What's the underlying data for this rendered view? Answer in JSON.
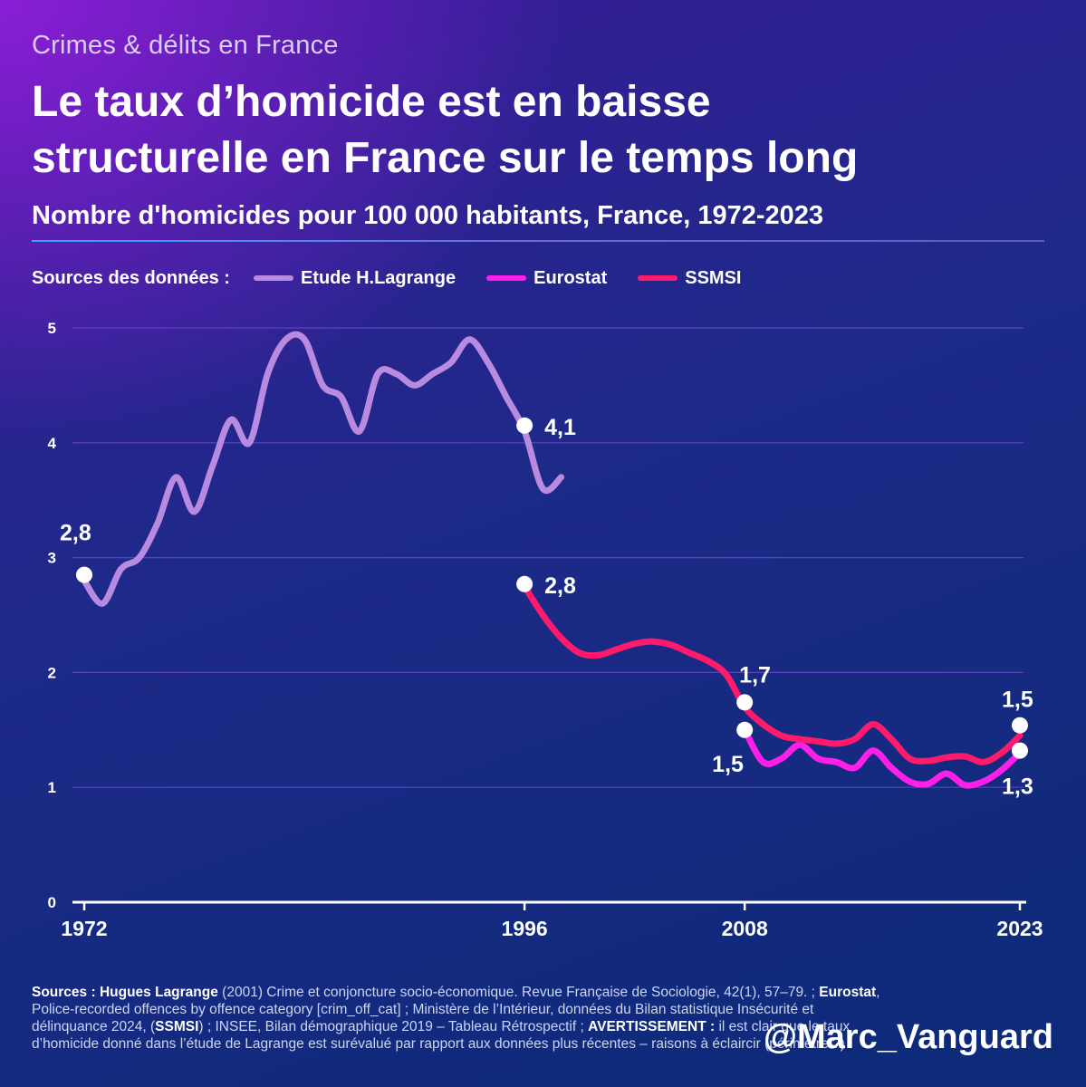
{
  "kicker": "Crimes & délits en France",
  "title_line1": "Le taux d’homicide est en baisse",
  "title_line2": "structurelle en France sur le temps long",
  "subtitle": "Nombre d'homicides pour 100 000 habitants, France, 1972-2023",
  "legend": {
    "lead": "Sources des données :",
    "items": [
      {
        "label": "Etude H.Lagrange",
        "color": "#b98be0"
      },
      {
        "label": "Eurostat",
        "color": "#ff1fe8"
      },
      {
        "label": "SSMSI",
        "color": "#ff1a6c"
      }
    ]
  },
  "chart_data": {
    "type": "line",
    "xlim": [
      1972,
      2023
    ],
    "ylim": [
      0,
      5
    ],
    "yticks": [
      0,
      1,
      2,
      3,
      4,
      5
    ],
    "xticks": [
      1972,
      1996,
      2008,
      2023
    ],
    "xtick_labels": [
      "1972",
      "1996",
      "2008",
      "2023"
    ],
    "ytick_labels": [
      "0",
      "1",
      "2",
      "3",
      "4",
      "5"
    ],
    "grid": "horizontal",
    "legend_position": "top-left",
    "series": [
      {
        "name": "Etude H.Lagrange",
        "color": "#b98be0",
        "x": [
          1972,
          1973,
          1974,
          1975,
          1976,
          1977,
          1978,
          1979,
          1980,
          1981,
          1982,
          1983,
          1984,
          1985,
          1986,
          1987,
          1988,
          1989,
          1990,
          1991,
          1992,
          1993,
          1994,
          1995,
          1996,
          1997,
          1998
        ],
        "y": [
          2.8,
          2.6,
          2.9,
          3.0,
          3.3,
          3.7,
          3.4,
          3.8,
          4.2,
          4.0,
          4.6,
          4.9,
          4.9,
          4.5,
          4.4,
          4.1,
          4.6,
          4.6,
          4.5,
          4.6,
          4.7,
          4.9,
          4.7,
          4.4,
          4.1,
          3.6,
          3.7
        ]
      },
      {
        "name": "SSMSI",
        "color": "#ff1a6c",
        "x": [
          1996,
          1997,
          1998,
          1999,
          2000,
          2001,
          2002,
          2003,
          2004,
          2005,
          2006,
          2007,
          2008,
          2009,
          2010,
          2011,
          2012,
          2013,
          2014,
          2015,
          2016,
          2017,
          2018,
          2019,
          2020,
          2021,
          2022,
          2023
        ],
        "y": [
          2.75,
          2.5,
          2.3,
          2.17,
          2.15,
          2.2,
          2.25,
          2.27,
          2.24,
          2.17,
          2.1,
          1.98,
          1.7,
          1.55,
          1.45,
          1.42,
          1.4,
          1.38,
          1.42,
          1.55,
          1.42,
          1.25,
          1.23,
          1.26,
          1.27,
          1.22,
          1.3,
          1.45
        ]
      },
      {
        "name": "Eurostat",
        "color": "#ff1fe8",
        "x": [
          2008,
          2009,
          2010,
          2011,
          2012,
          2013,
          2014,
          2015,
          2016,
          2017,
          2018,
          2019,
          2020,
          2021,
          2022,
          2023
        ],
        "y": [
          1.5,
          1.22,
          1.25,
          1.37,
          1.25,
          1.22,
          1.17,
          1.32,
          1.17,
          1.05,
          1.03,
          1.12,
          1.02,
          1.05,
          1.15,
          1.3
        ]
      }
    ],
    "annotations": [
      {
        "label": "2,8",
        "x": 1972,
        "y": 2.85,
        "dx": -27,
        "dy": -38,
        "anchor": "start"
      },
      {
        "label": "4,1",
        "x": 1996,
        "y": 4.15,
        "dx": 22,
        "dy": 10,
        "anchor": "start"
      },
      {
        "label": "2,8",
        "x": 1996,
        "y": 2.77,
        "dx": 22,
        "dy": 10,
        "anchor": "start"
      },
      {
        "label": "1,7",
        "x": 2008,
        "y": 1.74,
        "dx": -6,
        "dy": -22,
        "anchor": "start"
      },
      {
        "label": "1,5",
        "x": 2008,
        "y": 1.5,
        "dx": -36,
        "dy": 46,
        "anchor": "start"
      },
      {
        "label": "1,5",
        "x": 2023,
        "y": 1.54,
        "dx": -20,
        "dy": -20,
        "anchor": "start"
      },
      {
        "label": "1,3",
        "x": 2023,
        "y": 1.32,
        "dx": -20,
        "dy": 48,
        "anchor": "start"
      }
    ]
  },
  "sources": {
    "p1": "Sources : ",
    "b1": "Hugues Lagrange",
    "p2": " (2001) Crime et conjoncture socio-économique. Revue Française de Sociologie, 42(1), 57–79. ; ",
    "b2": "Eurostat",
    "p3": ", Police-recorded offences by offence category [crim_off_cat] ; Ministère de l’Intérieur, données du Bilan statistique Insécurité et délinquance 2024, (",
    "b3": "SSMSI",
    "p4": ") ; INSEE, Bilan démographique 2019 – Tableau Rétrospectif ; ",
    "b4": "AVERTISSEMENT :",
    "p5": " il est clair que le taux d’homicide donné dans l’étude de Lagrange est surévalué par rapport aux données plus récentes – raisons à éclaircir (périmètre ?)"
  },
  "handle": "@Marc_Vanguard"
}
